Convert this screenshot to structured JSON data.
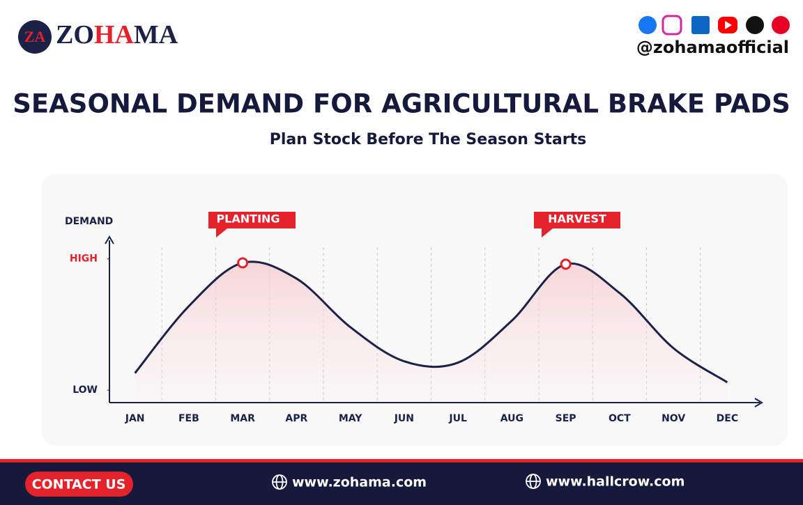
{
  "header": {
    "logo_icon": "ZA",
    "brand": [
      "ZO",
      "HA",
      "MA"
    ],
    "handle": "@zohamaofficial"
  },
  "chart_data": {
    "type": "line",
    "title": "SEASONAL DEMAND FOR AGRICULTURAL BRAKE PADS",
    "subtitle": "Plan Stock Before The Season Starts",
    "y_label": "DEMAND",
    "categories": [
      "JAN",
      "FEB",
      "MAR",
      "APR",
      "MAY",
      "JUN",
      "JUL",
      "AUG",
      "SEP",
      "OCT",
      "NOV",
      "DEC"
    ],
    "series": [
      {
        "name": "Demand",
        "color": "#1b2147",
        "values": [
          0.13,
          0.64,
          0.97,
          0.85,
          0.48,
          0.22,
          0.21,
          0.53,
          0.96,
          0.74,
          0.32,
          0.06
        ]
      }
    ],
    "ylim": [
      -0.1,
      1.2
    ],
    "yticks": [
      {
        "value": 0,
        "label": "LOW"
      },
      {
        "value": 1,
        "label": "HIGH"
      }
    ],
    "annotations": [
      "PLANTING",
      "HARVEST"
    ]
  },
  "footer": {
    "button": "CONTACT US",
    "links": [
      "www.zohama.com",
      "www.hallcrow.com"
    ]
  }
}
